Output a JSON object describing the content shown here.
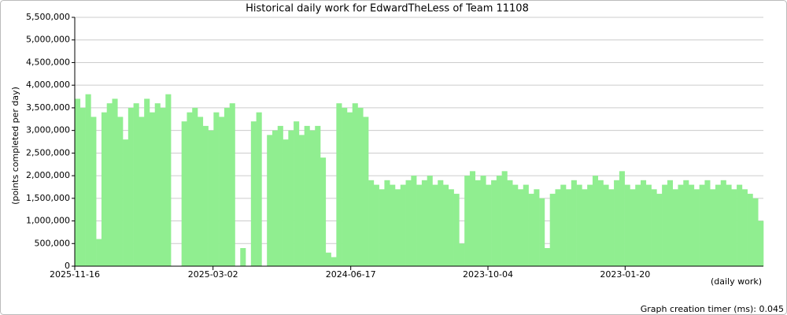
{
  "chart_data": {
    "type": "bar",
    "title": "Historical daily work for EdwardTheLess of Team 11108",
    "y_label": "(points completed per day)",
    "x_label": "(daily work)",
    "footnote": "Graph creation timer (ms): 0.045",
    "color": "#90ee90",
    "grid": true,
    "xlim": [
      "2025-11-16",
      "2022-05-06"
    ],
    "xticks": [
      "2025-11-16",
      "2025-03-02",
      "2024-06-17",
      "2023-10-04",
      "2023-01-20"
    ],
    "ylim": [
      0,
      5500000
    ],
    "yticks": [
      0,
      {
        "value": 500000,
        "label": "500,000"
      },
      {
        "value": 1000000,
        "label": "1,000,000"
      },
      {
        "value": 1500000,
        "label": "1,500,000"
      },
      {
        "value": 2000000,
        "label": "2,000,000"
      },
      {
        "value": 2500000,
        "label": "2,500,000"
      },
      {
        "value": 3000000,
        "label": "3,000,000"
      },
      {
        "value": 3500000,
        "label": "3,500,000"
      },
      {
        "value": 4000000,
        "label": "4,000,000"
      },
      {
        "value": 4500000,
        "label": "4,500,000"
      },
      {
        "value": 5000000,
        "label": "5,000,000"
      },
      {
        "value": 5500000,
        "label": "5,500,000"
      }
    ],
    "x": [
      "2025-11-16",
      "2025-11-06",
      "2025-10-27",
      "2025-10-17",
      "2025-10-07",
      "2025-09-27",
      "2025-09-17",
      "2025-09-07",
      "2025-08-28",
      "2025-08-18",
      "2025-08-08",
      "2025-07-29",
      "2025-07-19",
      "2025-07-09",
      "2025-06-29",
      "2025-06-19",
      "2025-06-09",
      "2025-05-30",
      "2025-05-20",
      "2025-05-10",
      "2025-04-30",
      "2025-04-20",
      "2025-04-10",
      "2025-03-31",
      "2025-03-21",
      "2025-03-11",
      "2025-03-01",
      "2025-02-19",
      "2025-02-09",
      "2025-01-30",
      "2025-01-20",
      "2025-01-10",
      "2024-12-31",
      "2024-12-21",
      "2024-12-11",
      "2024-12-01",
      "2024-11-21",
      "2024-11-11",
      "2024-11-01",
      "2024-10-22",
      "2024-10-12",
      "2024-10-02",
      "2024-09-22",
      "2024-09-12",
      "2024-09-02",
      "2024-08-23",
      "2024-08-13",
      "2024-08-03",
      "2024-07-24",
      "2024-07-14",
      "2024-07-04",
      "2024-06-24",
      "2024-06-14",
      "2024-06-04",
      "2024-05-25",
      "2024-05-15",
      "2024-05-05",
      "2024-04-25",
      "2024-04-15",
      "2024-04-05",
      "2024-03-26",
      "2024-03-16",
      "2024-03-06",
      "2024-02-25",
      "2024-02-15",
      "2024-02-05",
      "2024-01-26",
      "2024-01-16",
      "2024-01-06",
      "2023-12-27",
      "2023-12-17",
      "2023-12-07",
      "2023-11-27",
      "2023-11-17",
      "2023-11-07",
      "2023-10-28",
      "2023-10-18",
      "2023-10-08",
      "2023-09-28",
      "2023-09-18",
      "2023-09-08",
      "2023-08-29",
      "2023-08-19",
      "2023-08-09",
      "2023-07-30",
      "2023-07-20",
      "2023-07-10",
      "2023-06-30",
      "2023-06-20",
      "2023-06-10",
      "2023-05-31",
      "2023-05-21",
      "2023-05-11",
      "2023-05-01",
      "2023-04-21",
      "2023-04-11",
      "2023-04-01",
      "2023-03-22",
      "2023-03-12",
      "2023-03-02",
      "2023-02-20",
      "2023-02-10",
      "2023-01-31",
      "2023-01-21",
      "2023-01-11",
      "2023-01-01",
      "2022-12-22",
      "2022-12-12",
      "2022-12-02",
      "2022-11-22",
      "2022-11-12",
      "2022-11-02",
      "2022-10-23",
      "2022-10-13",
      "2022-10-03",
      "2022-09-23",
      "2022-09-13",
      "2022-09-03",
      "2022-08-24",
      "2022-08-14",
      "2022-08-04",
      "2022-07-25",
      "2022-07-15",
      "2022-07-05",
      "2022-06-25",
      "2022-06-15",
      "2022-06-05",
      "2022-05-26",
      "2022-05-16"
    ],
    "values": [
      3700000,
      3500000,
      3800000,
      3300000,
      600000,
      3400000,
      3600000,
      3700000,
      3300000,
      2800000,
      3500000,
      3600000,
      3300000,
      3700000,
      3400000,
      3600000,
      3500000,
      3800000,
      0,
      0,
      3200000,
      3400000,
      3500000,
      3300000,
      3100000,
      3000000,
      3400000,
      3300000,
      3500000,
      3600000,
      0,
      400000,
      0,
      3200000,
      3400000,
      0,
      2900000,
      3000000,
      3100000,
      2800000,
      3000000,
      3200000,
      2900000,
      3100000,
      3000000,
      3100000,
      2400000,
      300000,
      200000,
      3600000,
      3500000,
      3400000,
      3600000,
      3500000,
      3300000,
      1900000,
      1800000,
      1700000,
      1900000,
      1800000,
      1700000,
      1800000,
      1900000,
      2000000,
      1800000,
      1900000,
      2000000,
      1800000,
      1900000,
      1800000,
      1700000,
      1600000,
      500000,
      2000000,
      2100000,
      1900000,
      2000000,
      1800000,
      1900000,
      2000000,
      2100000,
      1900000,
      1800000,
      1700000,
      1800000,
      1600000,
      1700000,
      1500000,
      400000,
      1600000,
      1700000,
      1800000,
      1700000,
      1900000,
      1800000,
      1700000,
      1800000,
      2000000,
      1900000,
      1800000,
      1700000,
      1900000,
      2100000,
      1800000,
      1700000,
      1800000,
      1900000,
      1800000,
      1700000,
      1600000,
      1800000,
      1900000,
      1700000,
      1800000,
      1900000,
      1800000,
      1700000,
      1800000,
      1900000,
      1700000,
      1800000,
      1900000,
      1800000,
      1700000,
      1800000,
      1700000,
      1600000,
      1500000,
      1000000
    ]
  }
}
